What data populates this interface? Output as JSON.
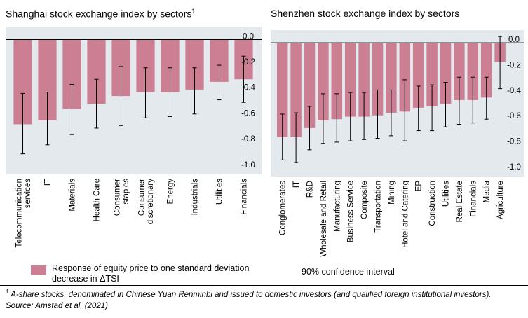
{
  "chart_data": [
    {
      "type": "bar",
      "title": "Shanghai stock exchange index by sectors",
      "title_footnote_mark": "1",
      "categories": [
        "Telecommunication services",
        "IT",
        "Materials",
        "Health Care",
        "Consumer staples",
        "Consumer discretionary",
        "Energy",
        "Industrials",
        "Utilities",
        "Financials"
      ],
      "tick_labels": [
        [
          "Telecommunication",
          "services"
        ],
        [
          "IT"
        ],
        [
          "Materials"
        ],
        [
          "Health Care"
        ],
        [
          "Consumer",
          "staples"
        ],
        [
          "Consumer",
          "discretionary"
        ],
        [
          "Energy"
        ],
        [
          "Industrials"
        ],
        [
          "Utilities"
        ],
        [
          "Financials"
        ]
      ],
      "values": [
        -0.66,
        -0.63,
        -0.54,
        -0.5,
        -0.44,
        -0.41,
        -0.41,
        -0.39,
        -0.33,
        -0.31
      ],
      "ci_lower": [
        -0.89,
        -0.82,
        -0.74,
        -0.69,
        -0.67,
        -0.61,
        -0.6,
        -0.58,
        -0.47,
        -0.49
      ],
      "ci_upper": [
        -0.42,
        -0.41,
        -0.35,
        -0.31,
        -0.21,
        -0.22,
        -0.22,
        -0.22,
        -0.2,
        -0.13
      ],
      "ylim": [
        -1.05,
        0.1
      ],
      "yticks": [
        0.0,
        -0.2,
        -0.4,
        -0.6,
        -0.8,
        -1.0
      ],
      "ytick_labels": [
        "0.0",
        "-0.2",
        "-0.4",
        "-0.6",
        "-0.8",
        "-1.0"
      ],
      "y_axis_side": "right",
      "xlabel": "",
      "ylabel": "",
      "bar_color": "#cc7f93",
      "plot_bg": "#e4e9ee",
      "grid": false
    },
    {
      "type": "bar",
      "title": "Shenzhen stock exchange index by sectors",
      "categories": [
        "Conglomerates",
        "IT",
        "R&D",
        "Wholesale and Retail",
        "Manufacturing",
        "Business Service",
        "Composite",
        "Transportation",
        "Mining",
        "Hotel and Catering",
        "EP",
        "Construction",
        "Utilities",
        "Real Estate",
        "Financials",
        "Media",
        "Agriculture"
      ],
      "tick_labels": [
        [
          "Conglomerates"
        ],
        [
          "IT"
        ],
        [
          "R&D"
        ],
        [
          "Wholesale and Retail"
        ],
        [
          "Manufacturing"
        ],
        [
          "Business Service"
        ],
        [
          "Composite"
        ],
        [
          "Transportation"
        ],
        [
          "Mining"
        ],
        [
          "Hotel and Catering"
        ],
        [
          "EP"
        ],
        [
          "Construction"
        ],
        [
          "Utilities"
        ],
        [
          "Real Estate"
        ],
        [
          "Financials"
        ],
        [
          "Media"
        ],
        [
          "Agriculture"
        ]
      ],
      "values": [
        -0.74,
        -0.74,
        -0.67,
        -0.61,
        -0.6,
        -0.58,
        -0.58,
        -0.57,
        -0.55,
        -0.54,
        -0.51,
        -0.5,
        -0.48,
        -0.45,
        -0.45,
        -0.43,
        -0.15
      ],
      "ci_lower": [
        -0.92,
        -0.94,
        -0.84,
        -0.79,
        -0.78,
        -0.77,
        -0.76,
        -0.75,
        -0.73,
        -0.77,
        -0.69,
        -0.69,
        -0.66,
        -0.64,
        -0.63,
        -0.6,
        -0.36
      ],
      "ci_upper": [
        -0.56,
        -0.55,
        -0.5,
        -0.4,
        -0.4,
        -0.39,
        -0.39,
        -0.37,
        -0.37,
        -0.29,
        -0.34,
        -0.33,
        -0.31,
        -0.27,
        -0.27,
        -0.27,
        0.05
      ],
      "ylim": [
        -1.05,
        0.1
      ],
      "yticks": [
        0.0,
        -0.2,
        -0.4,
        -0.6,
        -0.8,
        -1.0
      ],
      "ytick_labels": [
        "0.0",
        "-0.2",
        "-0.4",
        "-0.6",
        "-0.8",
        "-1.0"
      ],
      "y_axis_side": "right",
      "xlabel": "",
      "ylabel": "",
      "bar_color": "#cc7f93",
      "plot_bg": "#e4e9ee",
      "grid": false
    }
  ],
  "legend": {
    "bars": "Response of equity price to one standard deviation decrease in ΔTSI",
    "ci": "90% confidence interval"
  },
  "footnote": {
    "mark": "1",
    "text": "A-share stocks, denominated in Chinese Yuan Renminbi and issued to domestic investors (and qualified foreign institutional investors)."
  },
  "source": "Source: Amstad et al, (2021)"
}
